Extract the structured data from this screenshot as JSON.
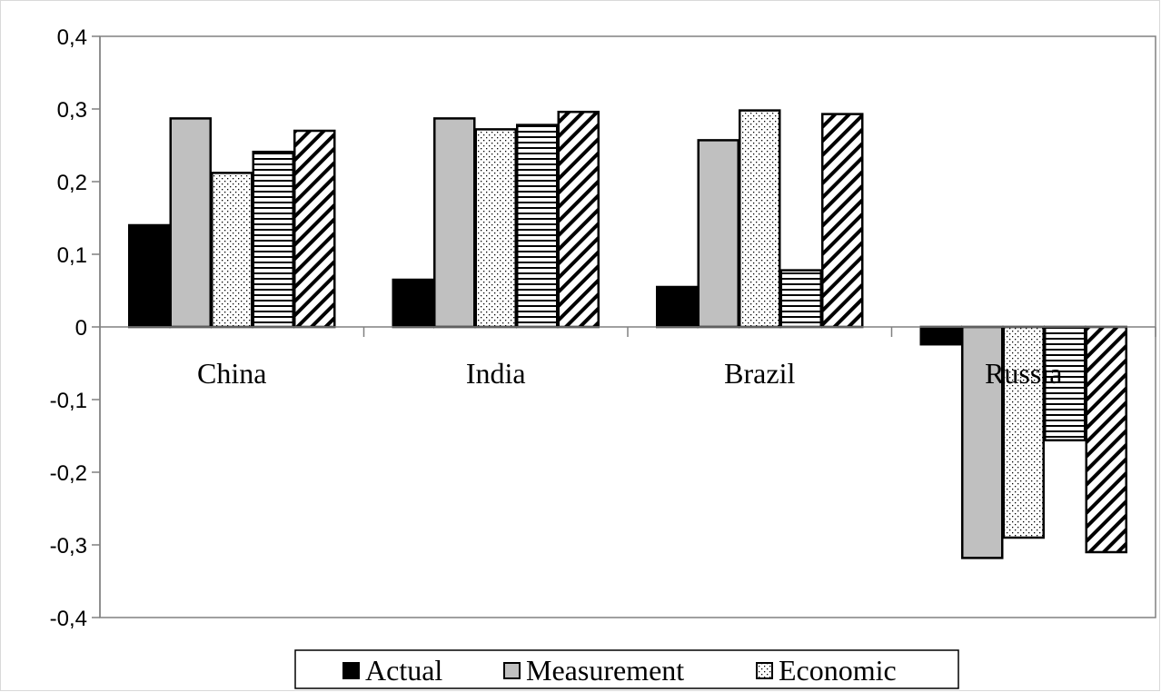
{
  "chart_data": {
    "type": "bar",
    "title": "",
    "xlabel": "",
    "ylabel": "",
    "categories": [
      "China",
      "India",
      "Brazil",
      "Russia"
    ],
    "ylim": [
      -0.4,
      0.4
    ],
    "yticks": [
      0.4,
      0.3,
      0.2,
      0.1,
      0,
      -0.1,
      -0.2,
      -0.3,
      -0.4
    ],
    "ytick_labels": [
      "0,4",
      "0,3",
      "0,2",
      "0,1",
      "0",
      "-0,1",
      "-0,2",
      "-0,3",
      "-0,4"
    ],
    "grid": false,
    "legend_position": "bottom",
    "series": [
      {
        "name": "Actual",
        "pattern": "solid-black",
        "values": [
          0.14,
          0.065,
          0.055,
          -0.024
        ]
      },
      {
        "name": "Measurement",
        "pattern": "solid-gray",
        "values": [
          0.287,
          0.287,
          0.257,
          -0.318
        ]
      },
      {
        "name": "Economic",
        "pattern": "dotted",
        "values": [
          0.212,
          0.272,
          0.298,
          -0.29
        ]
      },
      {
        "name": "",
        "pattern": "horizontal-lines",
        "values": [
          0.241,
          0.278,
          0.078,
          -0.156
        ]
      },
      {
        "name": "",
        "pattern": "diagonal-lines",
        "values": [
          0.27,
          0.296,
          0.293,
          -0.31
        ]
      }
    ],
    "colors": {
      "actual": "#000000",
      "measurement": "#c0c0c0",
      "outline": "#000000",
      "axis": "#808080"
    }
  }
}
